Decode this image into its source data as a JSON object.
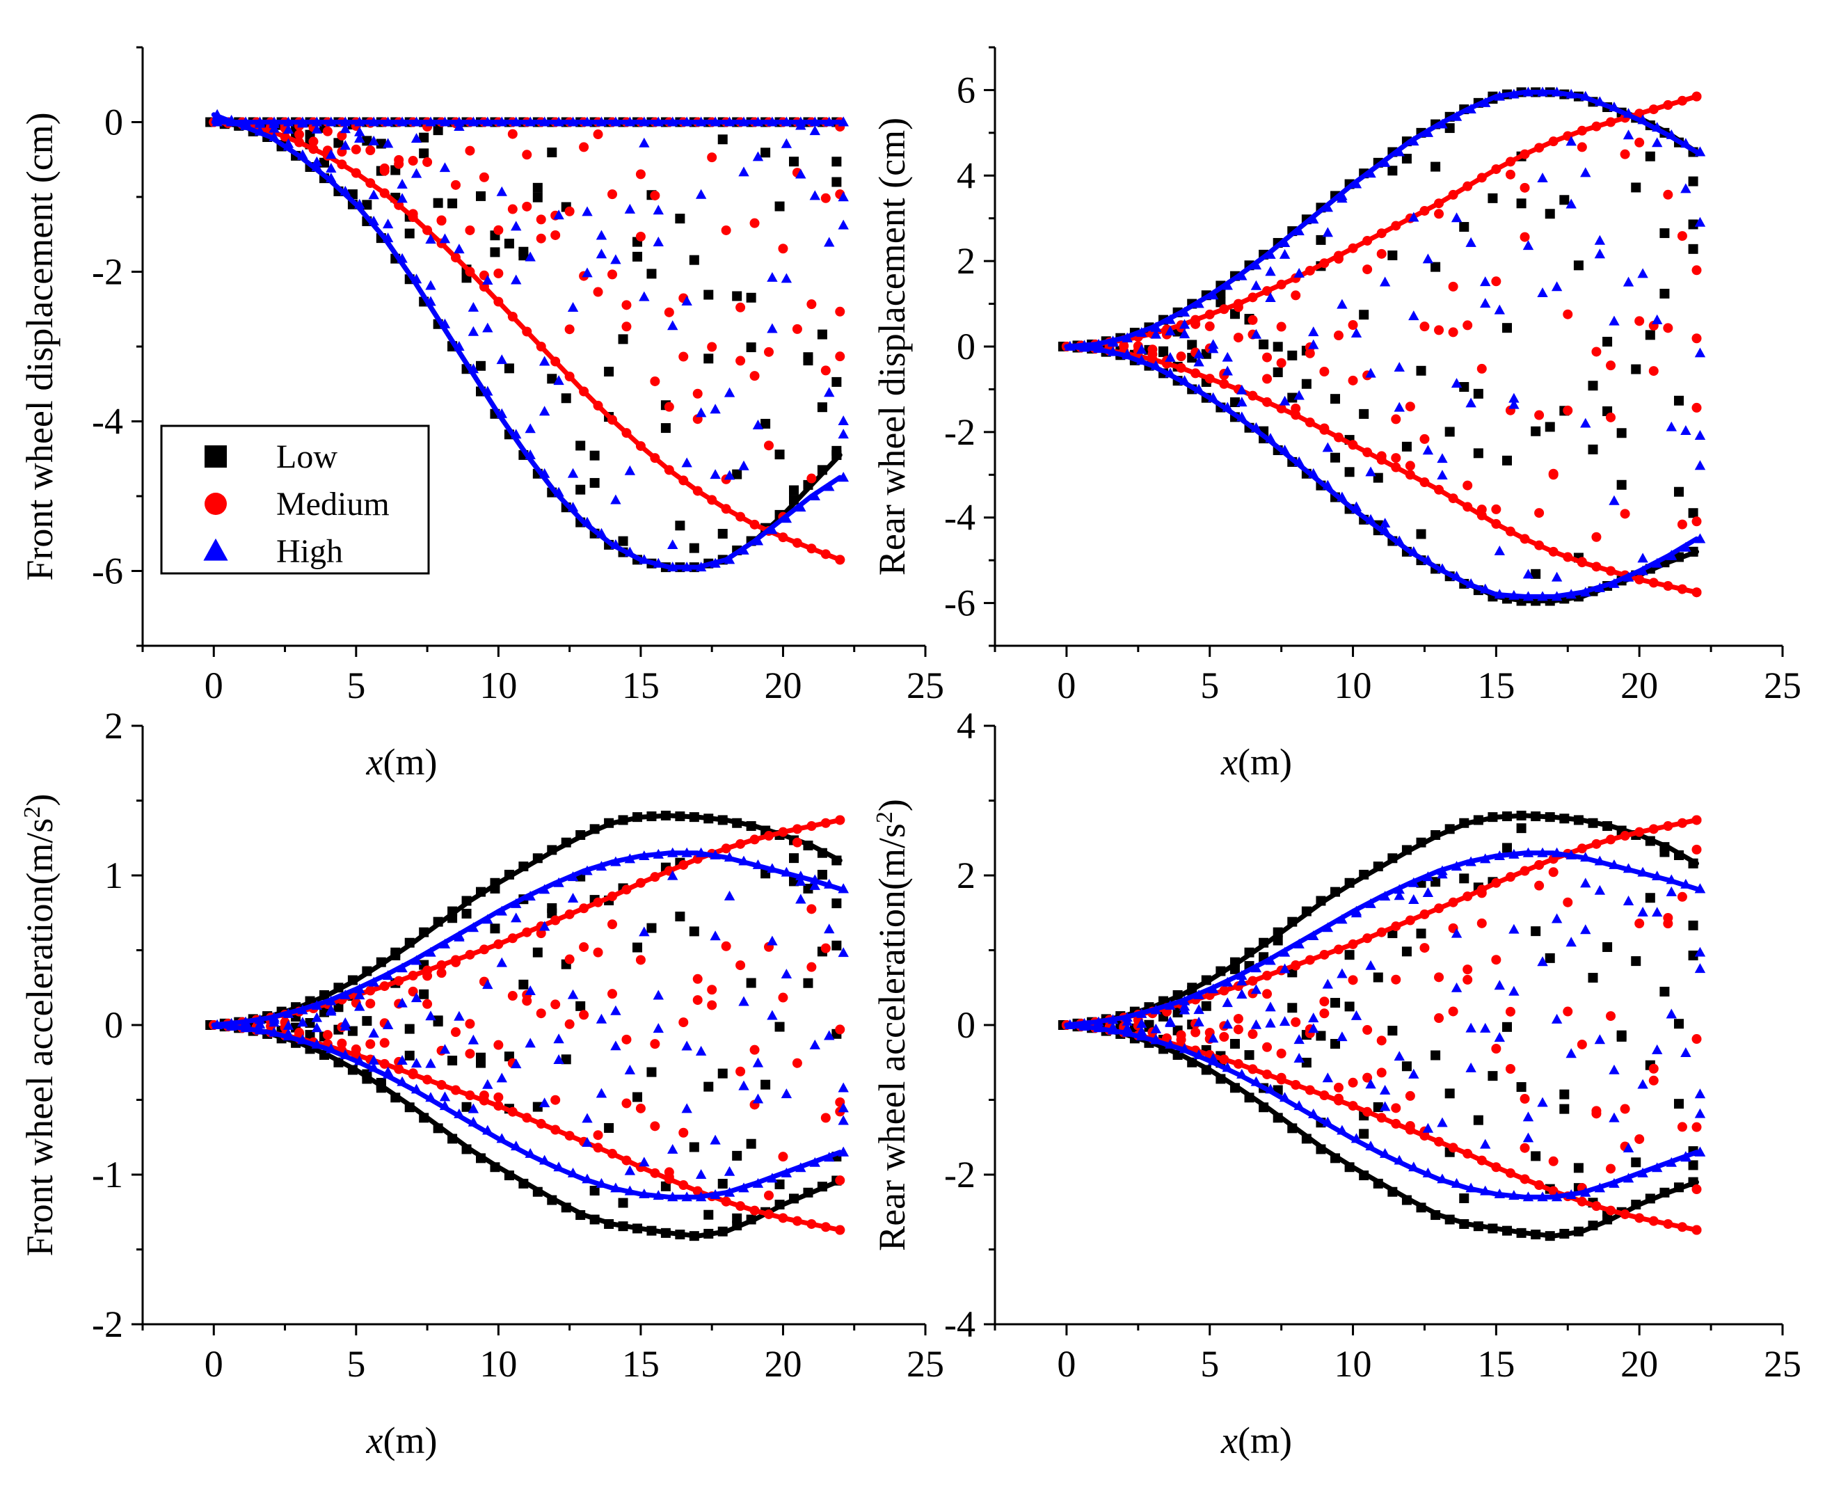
{
  "figure": {
    "legend": {
      "entries": [
        {
          "label": "Low",
          "color": "#000000",
          "marker": "square"
        },
        {
          "label": "Medium",
          "color": "#ff0000",
          "marker": "circle"
        },
        {
          "label": "High",
          "color": "#0000ff",
          "marker": "triangle"
        }
      ]
    }
  },
  "chart_data": [
    {
      "id": "front-displacement",
      "type": "line",
      "title": "",
      "ylabel": "Front wheel displacement (cm)",
      "xlabel": "x(m)",
      "xlabel_var": "x",
      "xlabel_unit": "(m)",
      "xlim": [
        -2.5,
        25
      ],
      "ylim": [
        -7,
        1
      ],
      "xticks": [
        0,
        5,
        10,
        15,
        20,
        25
      ],
      "yticks": [
        0,
        -2,
        -4,
        -6
      ],
      "ytick_labels": [
        "0",
        "-2",
        "-4",
        "-6"
      ],
      "grid": false,
      "legend": "center-left",
      "series": [
        {
          "name": "Low",
          "color": "#000000",
          "marker": "square",
          "x": [
            0,
            1,
            2,
            3,
            4,
            5,
            6,
            7,
            8,
            9,
            10,
            11,
            12,
            13,
            14,
            15,
            16,
            17,
            18,
            19,
            20,
            21,
            22
          ],
          "y": [
            0,
            -0.05,
            -0.2,
            -0.45,
            -0.75,
            -1.1,
            -1.55,
            -2.1,
            -2.7,
            -3.3,
            -3.9,
            -4.45,
            -4.95,
            -5.35,
            -5.65,
            -5.85,
            -5.95,
            -5.95,
            -5.85,
            -5.6,
            -5.25,
            -4.85,
            -4.45
          ],
          "flat": 0
        },
        {
          "name": "Medium",
          "color": "#ff0000",
          "marker": "circle",
          "x": [
            0,
            1,
            2,
            3,
            4,
            5,
            6,
            7,
            8,
            9,
            10,
            11,
            12,
            13,
            14,
            15,
            16,
            17,
            18,
            19,
            20,
            21,
            22
          ],
          "y": [
            0,
            -0.03,
            -0.12,
            -0.27,
            -0.45,
            -0.68,
            -0.95,
            -1.27,
            -1.62,
            -2.0,
            -2.4,
            -2.8,
            -3.2,
            -3.6,
            -3.98,
            -4.33,
            -4.65,
            -4.93,
            -5.17,
            -5.38,
            -5.55,
            -5.7,
            -5.85
          ],
          "flat": 0
        },
        {
          "name": "High",
          "color": "#0000ff",
          "marker": "triangle",
          "x": [
            0,
            1,
            2,
            3,
            4,
            5,
            6,
            7,
            8,
            9,
            10,
            11,
            12,
            13,
            14,
            15,
            16,
            17,
            18,
            19,
            20,
            21,
            22
          ],
          "y": [
            0.1,
            -0.05,
            -0.2,
            -0.45,
            -0.75,
            -1.1,
            -1.55,
            -2.1,
            -2.7,
            -3.3,
            -3.9,
            -4.45,
            -4.95,
            -5.35,
            -5.65,
            -5.85,
            -5.95,
            -5.95,
            -5.85,
            -5.6,
            -5.3,
            -5.0,
            -4.75
          ],
          "flat": 0
        }
      ]
    },
    {
      "id": "rear-displacement",
      "type": "line",
      "title": "",
      "ylabel": "Rear wheel displacement (cm)",
      "xlabel": "x(m)",
      "xlabel_var": "x",
      "xlabel_unit": "(m)",
      "xlim": [
        -2.5,
        25
      ],
      "ylim": [
        -7,
        7
      ],
      "xticks": [
        0,
        5,
        10,
        15,
        20,
        25
      ],
      "yticks": [
        6,
        4,
        2,
        0,
        -2,
        -4,
        -6
      ],
      "ytick_labels": [
        "6",
        "4",
        "2",
        "0",
        "-2",
        "-4",
        "-6"
      ],
      "grid": false,
      "series": [
        {
          "name": "Low",
          "color": "#000000",
          "marker": "square",
          "x": [
            0,
            1,
            2,
            3,
            4,
            5,
            6,
            7,
            8,
            9,
            10,
            11,
            12,
            13,
            14,
            15,
            16,
            17,
            18,
            19,
            20,
            21,
            22
          ],
          "y": [
            0,
            0.05,
            0.2,
            0.45,
            0.8,
            1.2,
            1.65,
            2.15,
            2.7,
            3.25,
            3.8,
            4.3,
            4.8,
            5.2,
            5.55,
            5.85,
            5.95,
            5.95,
            5.85,
            5.6,
            5.35,
            5.0,
            4.55
          ],
          "y_neg": [
            0,
            -0.05,
            -0.2,
            -0.45,
            -0.8,
            -1.2,
            -1.65,
            -2.15,
            -2.7,
            -3.25,
            -3.8,
            -4.3,
            -4.8,
            -5.2,
            -5.55,
            -5.85,
            -5.95,
            -5.95,
            -5.85,
            -5.6,
            -5.35,
            -5.05,
            -4.8
          ]
        },
        {
          "name": "Medium",
          "color": "#ff0000",
          "marker": "circle",
          "x": [
            0,
            1,
            2,
            3,
            4,
            5,
            6,
            7,
            8,
            9,
            10,
            11,
            12,
            13,
            14,
            15,
            16,
            17,
            18,
            19,
            20,
            21,
            22
          ],
          "y": [
            0,
            0.05,
            0.15,
            0.3,
            0.5,
            0.75,
            1.0,
            1.3,
            1.6,
            1.95,
            2.3,
            2.65,
            3.0,
            3.35,
            3.75,
            4.15,
            4.5,
            4.8,
            5.05,
            5.25,
            5.45,
            5.65,
            5.85
          ],
          "y_neg": [
            0,
            -0.05,
            -0.15,
            -0.3,
            -0.5,
            -0.75,
            -1.0,
            -1.3,
            -1.6,
            -1.95,
            -2.3,
            -2.65,
            -3.0,
            -3.35,
            -3.75,
            -4.15,
            -4.5,
            -4.8,
            -5.05,
            -5.25,
            -5.45,
            -5.6,
            -5.75
          ]
        },
        {
          "name": "High",
          "color": "#0000ff",
          "marker": "triangle",
          "x": [
            0,
            1,
            2,
            3,
            4,
            5,
            6,
            7,
            8,
            9,
            10,
            11,
            12,
            13,
            14,
            15,
            16,
            17,
            18,
            19,
            20,
            21,
            22
          ],
          "y": [
            0,
            0.05,
            0.2,
            0.45,
            0.8,
            1.2,
            1.65,
            2.15,
            2.7,
            3.25,
            3.8,
            4.3,
            4.8,
            5.2,
            5.55,
            5.85,
            5.95,
            5.95,
            5.85,
            5.6,
            5.3,
            4.95,
            4.55
          ],
          "y_neg": [
            0,
            -0.05,
            -0.2,
            -0.45,
            -0.8,
            -1.2,
            -1.65,
            -2.15,
            -2.7,
            -3.25,
            -3.8,
            -4.3,
            -4.8,
            -5.2,
            -5.55,
            -5.8,
            -5.85,
            -5.85,
            -5.75,
            -5.55,
            -5.25,
            -4.9,
            -4.5
          ]
        }
      ]
    },
    {
      "id": "front-acceleration",
      "type": "line",
      "title": "",
      "ylabel": "Front wheel acceleration(m/s",
      "ylabel_sup": "2",
      "ylabel_end": ")",
      "xlabel": "x(m)",
      "xlabel_var": "x",
      "xlabel_unit": "(m)",
      "xlim": [
        -2.5,
        25
      ],
      "ylim": [
        -2,
        2
      ],
      "xticks": [
        0,
        5,
        10,
        15,
        20,
        25
      ],
      "yticks": [
        2,
        1,
        0,
        -1,
        -2
      ],
      "ytick_labels": [
        "2",
        "1",
        "0",
        "-1",
        "-2"
      ],
      "grid": false,
      "series": [
        {
          "name": "Low",
          "color": "#000000",
          "marker": "square",
          "x": [
            0,
            1,
            2,
            3,
            4,
            5,
            6,
            7,
            8,
            9,
            10,
            11,
            12,
            13,
            14,
            15,
            16,
            17,
            18,
            19,
            20,
            21,
            22
          ],
          "y": [
            0,
            0.02,
            0.06,
            0.12,
            0.2,
            0.3,
            0.42,
            0.55,
            0.69,
            0.83,
            0.95,
            1.06,
            1.17,
            1.27,
            1.35,
            1.39,
            1.4,
            1.39,
            1.37,
            1.33,
            1.27,
            1.2,
            1.1
          ],
          "y_neg": [
            0,
            -0.02,
            -0.06,
            -0.12,
            -0.2,
            -0.3,
            -0.42,
            -0.55,
            -0.69,
            -0.83,
            -0.95,
            -1.06,
            -1.17,
            -1.27,
            -1.33,
            -1.36,
            -1.39,
            -1.41,
            -1.38,
            -1.3,
            -1.2,
            -1.12,
            -1.04
          ]
        },
        {
          "name": "Medium",
          "color": "#ff0000",
          "marker": "circle",
          "x": [
            0,
            1,
            2,
            3,
            4,
            5,
            6,
            7,
            8,
            9,
            10,
            11,
            12,
            13,
            14,
            15,
            16,
            17,
            18,
            19,
            20,
            21,
            22
          ],
          "y": [
            0,
            0.02,
            0.05,
            0.09,
            0.14,
            0.2,
            0.26,
            0.33,
            0.4,
            0.47,
            0.54,
            0.62,
            0.7,
            0.78,
            0.86,
            0.95,
            1.03,
            1.11,
            1.18,
            1.24,
            1.29,
            1.33,
            1.37
          ],
          "y_neg": [
            0,
            -0.02,
            -0.05,
            -0.09,
            -0.14,
            -0.2,
            -0.26,
            -0.33,
            -0.4,
            -0.47,
            -0.54,
            -0.62,
            -0.7,
            -0.78,
            -0.86,
            -0.95,
            -1.03,
            -1.11,
            -1.18,
            -1.24,
            -1.29,
            -1.33,
            -1.37
          ]
        },
        {
          "name": "High",
          "color": "#0000ff",
          "marker": "triangle",
          "x": [
            0,
            1,
            2,
            3,
            4,
            5,
            6,
            7,
            8,
            9,
            10,
            11,
            12,
            13,
            14,
            15,
            16,
            17,
            18,
            19,
            20,
            21,
            22
          ],
          "y": [
            0,
            0.02,
            0.05,
            0.1,
            0.16,
            0.24,
            0.33,
            0.43,
            0.54,
            0.65,
            0.76,
            0.86,
            0.95,
            1.03,
            1.09,
            1.13,
            1.15,
            1.15,
            1.12,
            1.07,
            1.02,
            0.97,
            0.91
          ],
          "y_neg": [
            0,
            -0.02,
            -0.05,
            -0.1,
            -0.16,
            -0.24,
            -0.33,
            -0.43,
            -0.54,
            -0.65,
            -0.76,
            -0.86,
            -0.95,
            -1.03,
            -1.09,
            -1.13,
            -1.15,
            -1.15,
            -1.12,
            -1.06,
            -0.99,
            -0.92,
            -0.85
          ]
        }
      ]
    },
    {
      "id": "rear-acceleration",
      "type": "line",
      "title": "",
      "ylabel": "Rear wheel acceleration(m/s",
      "ylabel_sup": "2",
      "ylabel_end": ")",
      "xlabel": "x(m)",
      "xlabel_var": "x",
      "xlabel_unit": "(m)",
      "xlim": [
        -2.5,
        25
      ],
      "ylim": [
        -4,
        4
      ],
      "xticks": [
        0,
        5,
        10,
        15,
        20,
        25
      ],
      "yticks": [
        4,
        2,
        0,
        -2,
        -4
      ],
      "ytick_labels": [
        "4",
        "2",
        "0",
        "-2",
        "-4"
      ],
      "grid": false,
      "series": [
        {
          "name": "Low",
          "color": "#000000",
          "marker": "square",
          "x": [
            0,
            1,
            2,
            3,
            4,
            5,
            6,
            7,
            8,
            9,
            10,
            11,
            12,
            13,
            14,
            15,
            16,
            17,
            18,
            19,
            20,
            21,
            22
          ],
          "y": [
            0,
            0.04,
            0.12,
            0.24,
            0.4,
            0.6,
            0.84,
            1.1,
            1.38,
            1.66,
            1.9,
            2.12,
            2.34,
            2.54,
            2.7,
            2.78,
            2.8,
            2.78,
            2.74,
            2.66,
            2.54,
            2.38,
            2.16
          ],
          "y_neg": [
            0,
            -0.04,
            -0.12,
            -0.24,
            -0.4,
            -0.6,
            -0.84,
            -1.1,
            -1.38,
            -1.66,
            -1.9,
            -2.12,
            -2.34,
            -2.54,
            -2.66,
            -2.72,
            -2.78,
            -2.82,
            -2.76,
            -2.6,
            -2.4,
            -2.24,
            -2.1
          ]
        },
        {
          "name": "Medium",
          "color": "#ff0000",
          "marker": "circle",
          "x": [
            0,
            1,
            2,
            3,
            4,
            5,
            6,
            7,
            8,
            9,
            10,
            11,
            12,
            13,
            14,
            15,
            16,
            17,
            18,
            19,
            20,
            21,
            22
          ],
          "y": [
            0,
            0.04,
            0.1,
            0.18,
            0.28,
            0.4,
            0.52,
            0.66,
            0.8,
            0.94,
            1.08,
            1.24,
            1.4,
            1.56,
            1.72,
            1.9,
            2.06,
            2.22,
            2.36,
            2.48,
            2.58,
            2.66,
            2.74
          ],
          "y_neg": [
            0,
            -0.04,
            -0.1,
            -0.18,
            -0.28,
            -0.4,
            -0.52,
            -0.66,
            -0.8,
            -0.94,
            -1.08,
            -1.24,
            -1.4,
            -1.56,
            -1.72,
            -1.9,
            -2.06,
            -2.22,
            -2.36,
            -2.48,
            -2.58,
            -2.66,
            -2.74
          ]
        },
        {
          "name": "High",
          "color": "#0000ff",
          "marker": "triangle",
          "x": [
            0,
            1,
            2,
            3,
            4,
            5,
            6,
            7,
            8,
            9,
            10,
            11,
            12,
            13,
            14,
            15,
            16,
            17,
            18,
            19,
            20,
            21,
            22
          ],
          "y": [
            0,
            0.04,
            0.1,
            0.2,
            0.32,
            0.48,
            0.66,
            0.86,
            1.08,
            1.3,
            1.52,
            1.72,
            1.9,
            2.06,
            2.18,
            2.26,
            2.3,
            2.3,
            2.24,
            2.14,
            2.04,
            1.94,
            1.82
          ],
          "y_neg": [
            0,
            -0.04,
            -0.1,
            -0.2,
            -0.32,
            -0.48,
            -0.66,
            -0.86,
            -1.08,
            -1.3,
            -1.52,
            -1.72,
            -1.9,
            -2.06,
            -2.18,
            -2.26,
            -2.3,
            -2.3,
            -2.24,
            -2.12,
            -1.98,
            -1.84,
            -1.7
          ]
        }
      ]
    }
  ]
}
